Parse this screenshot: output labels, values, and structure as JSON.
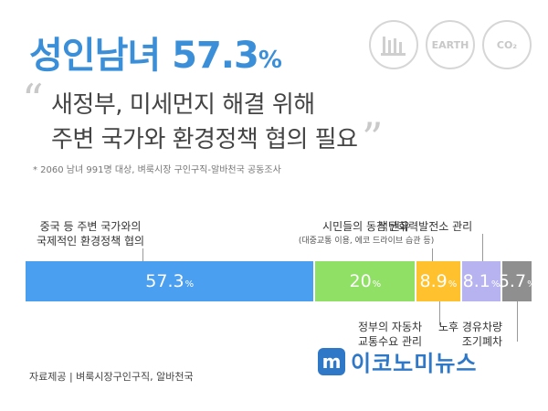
{
  "headline": {
    "main": "성인남녀 57.3",
    "unit": "%"
  },
  "quote": {
    "open": "“",
    "close": "”"
  },
  "subtitle": {
    "line1": "새정부, 미세먼지 해결 위해",
    "line2": "주변 국가와 환경정책 협의 필요"
  },
  "survey_note": "* 2060 남녀 991명 대상, 벼룩시장 구인구직-알바천국 공동조사",
  "icons": [
    {
      "name": "factory-icon",
      "label": ""
    },
    {
      "name": "earth-icon",
      "label": "EARTH"
    },
    {
      "name": "car-icon",
      "label": "CO₂"
    }
  ],
  "credit": "자료제공 | 벼룩시장구인구직, 알바천국",
  "brand": {
    "logo_letter": "m",
    "name": "이코노미뉴스"
  },
  "chart_data": {
    "type": "bar",
    "orientation": "horizontal-stacked",
    "unit": "%",
    "categories": [
      "중국 등 주변 국가와의 국제적인 환경정책 협의",
      "시민들의 동참 권유 (대중교통 이용, 에코 드라이브 습관 등)",
      "정부의 자동차 교통수요 관리",
      "석탄화력발전소 관리",
      "노후 경유차량 조기폐차"
    ],
    "values": [
      57.3,
      20,
      8.9,
      8.1,
      5.7
    ],
    "value_labels": [
      "57.3",
      "20",
      "8.9",
      "8.1",
      "5.7"
    ],
    "colors": [
      "#4a9ff0",
      "#8fe065",
      "#ffc22e",
      "#b7b3f0",
      "#8f8f8f"
    ],
    "label_lines": [
      {
        "line1": "중국 등 주변 국가와의",
        "line2": "국제적인 환경정책 협의",
        "position": "top"
      },
      {
        "line1": "시민들의 동참 권유",
        "line2": "(대중교통 이용, 에코 드라이브 습관 등)",
        "position": "top"
      },
      {
        "line1": "정부의 자동차",
        "line2": "교통수요 관리",
        "position": "bottom"
      },
      {
        "line1": "석탄화력발전소 관리",
        "line2": "",
        "position": "top"
      },
      {
        "line1": "노후 경유차량",
        "line2": "조기폐차",
        "position": "bottom"
      }
    ]
  }
}
